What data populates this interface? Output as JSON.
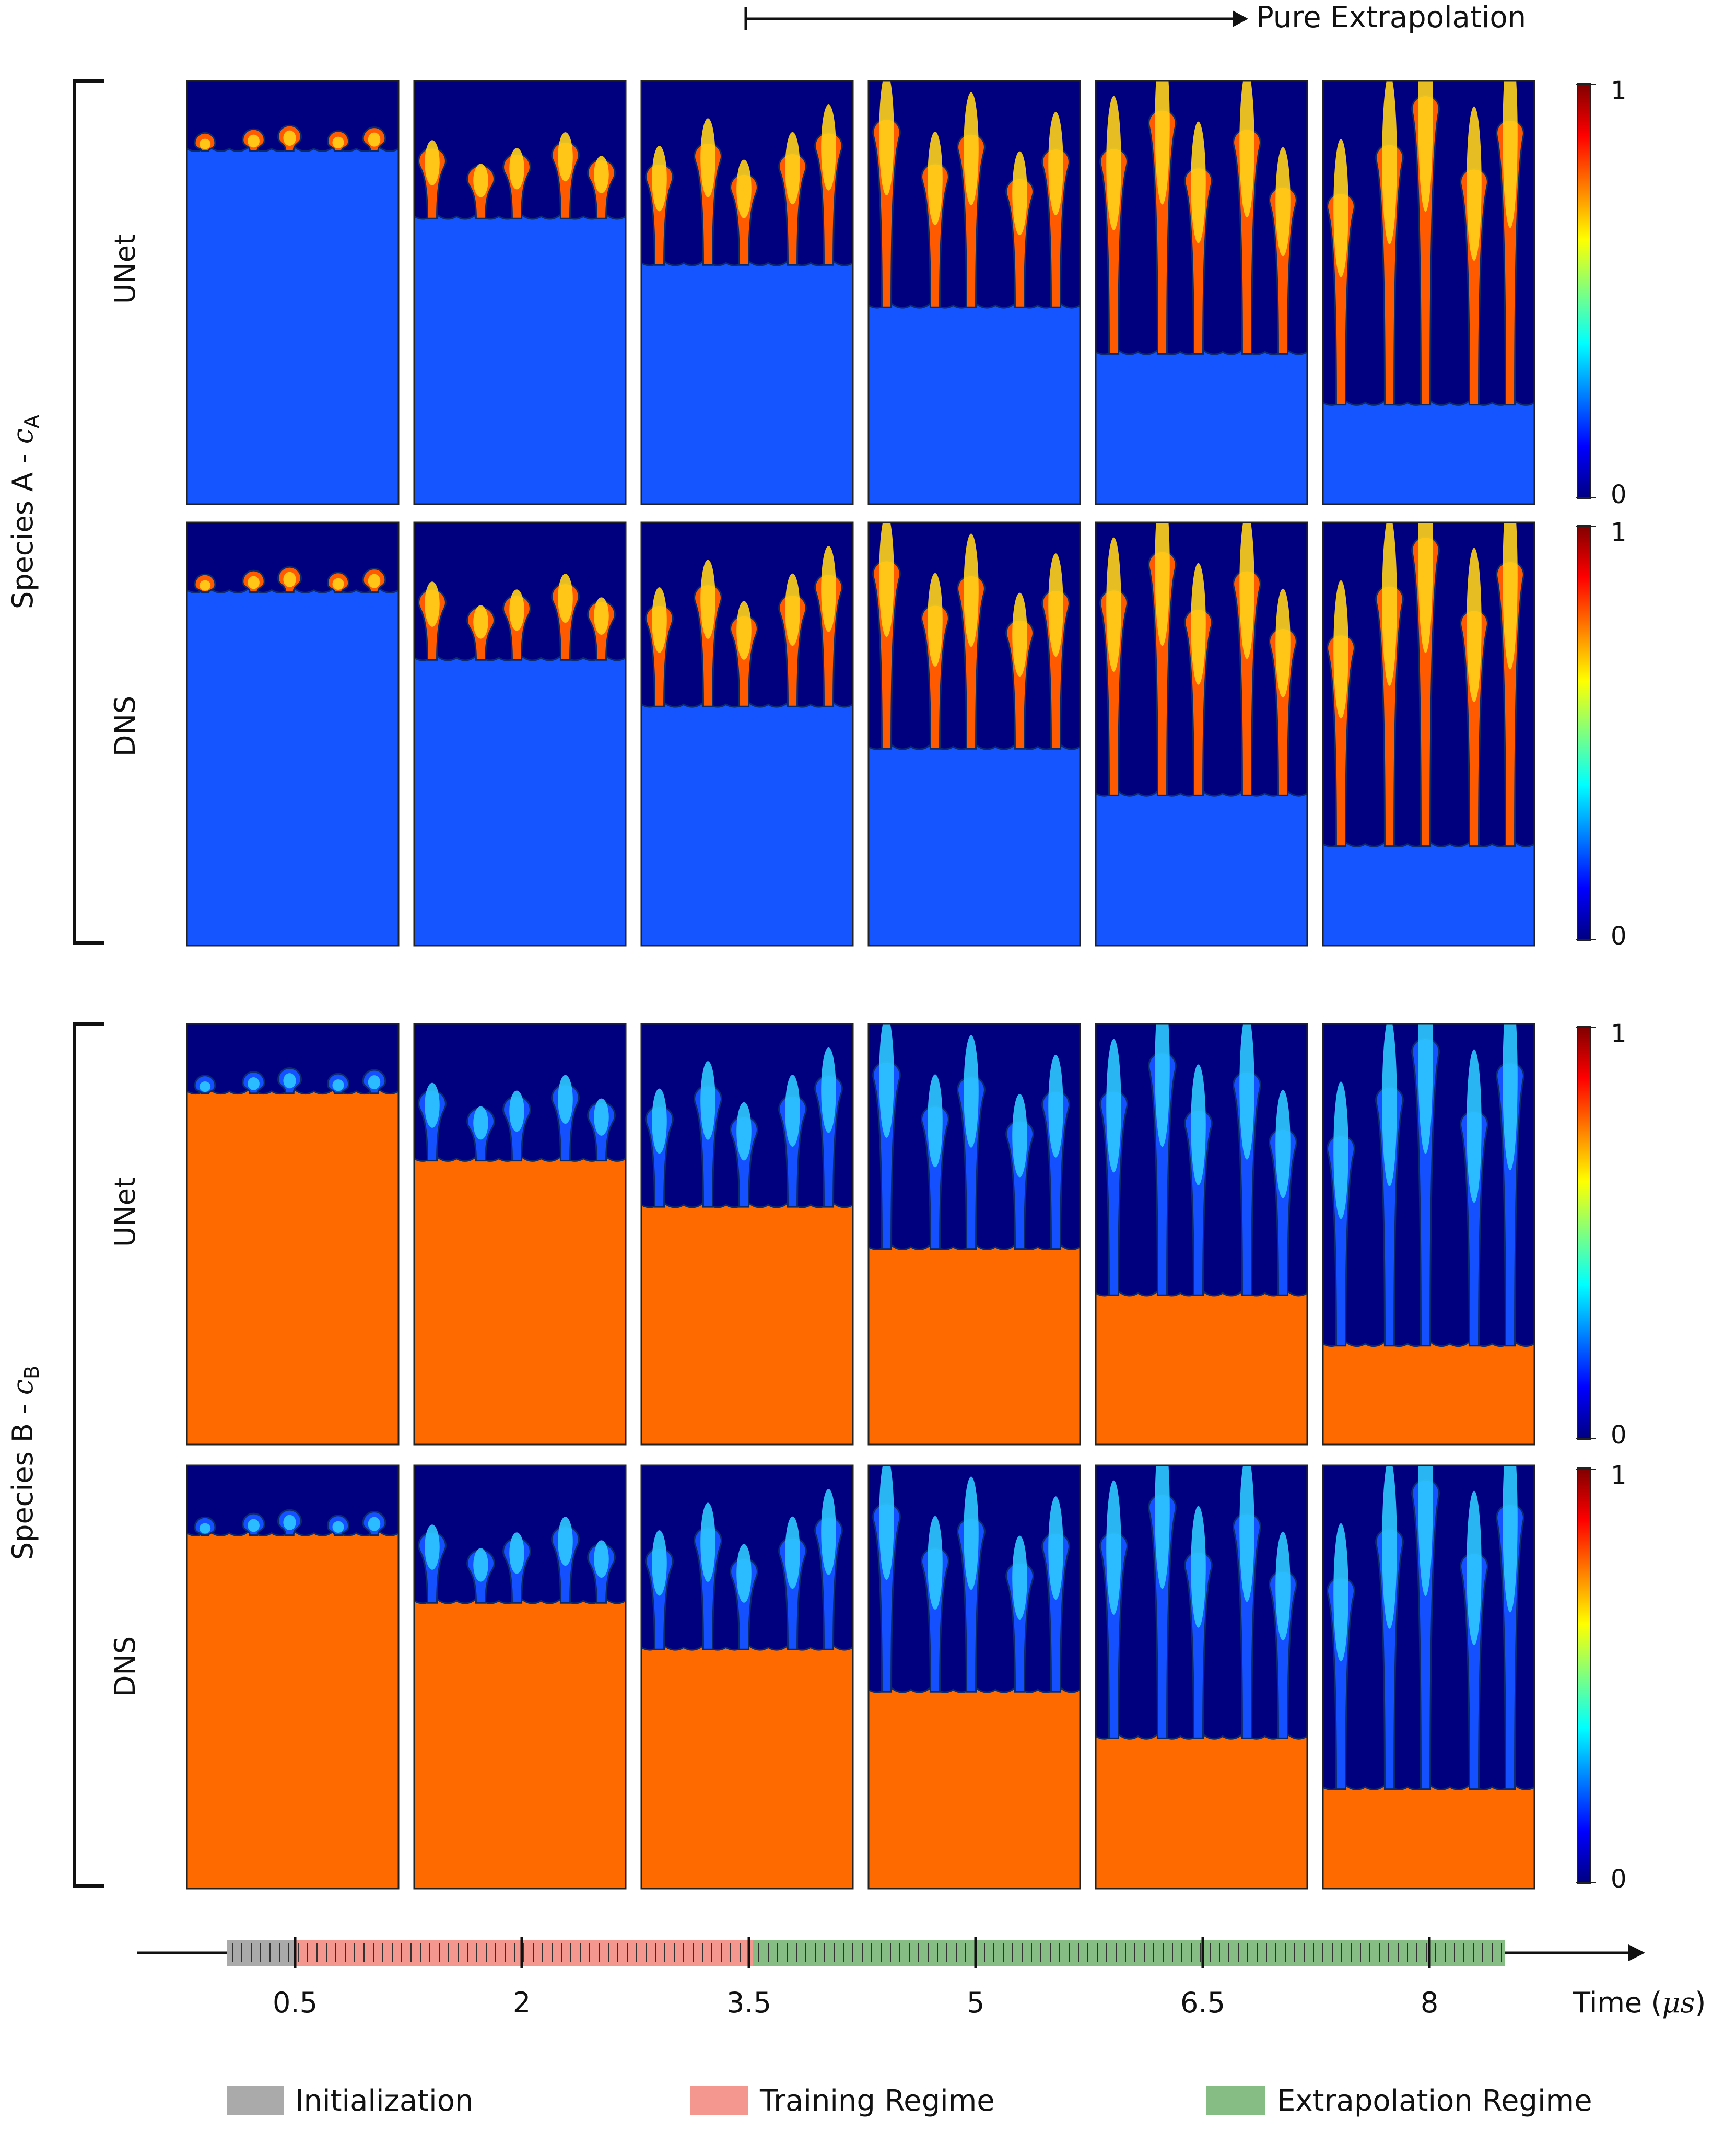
{
  "header": {
    "extrapolation_label": "Pure Extrapolation"
  },
  "species": [
    {
      "prefix": "Species A - ",
      "symbol": "c",
      "subscript": "A",
      "rows": [
        {
          "label": "UNet",
          "colorbar": {
            "max": "1",
            "min": "0"
          }
        },
        {
          "label": "DNS",
          "colorbar": {
            "max": "1",
            "min": "0"
          }
        }
      ],
      "colors": {
        "top": "#00007f",
        "bottom": "#1455ff",
        "finger_core": "#ffd21a",
        "finger_edge": "#ff5a00"
      }
    },
    {
      "prefix": "Species B - ",
      "symbol": "c",
      "subscript": "B",
      "rows": [
        {
          "label": "UNet",
          "colorbar": {
            "max": "1",
            "min": "0"
          }
        },
        {
          "label": "DNS",
          "colorbar": {
            "max": "1",
            "min": "0"
          }
        }
      ],
      "colors": {
        "top": "#00007f",
        "bottom": "#ff6a00",
        "finger_core": "#2ec8ff",
        "finger_edge": "#1450ff"
      }
    }
  ],
  "snapshots": {
    "count": 6,
    "interface_depth": [
      0.16,
      0.32,
      0.43,
      0.53,
      0.64,
      0.76
    ],
    "finger_length": [
      0.05,
      0.16,
      0.28,
      0.4,
      0.52,
      0.66
    ]
  },
  "timeline": {
    "tick_labels": [
      "0.5",
      "2",
      "3.5",
      "5",
      "6.5",
      "8"
    ],
    "axis_label_prefix": "Time ",
    "axis_label_unit": "μs",
    "segments": [
      {
        "name": "Initialization",
        "color": "#aaaaaa"
      },
      {
        "name": "Training Regime",
        "color": "#f4978e"
      },
      {
        "name": "Extrapolation Regime",
        "color": "#86bd84"
      }
    ]
  },
  "legend": [
    {
      "label": "Initialization",
      "color": "#aaaaaa"
    },
    {
      "label": "Training Regime",
      "color": "#f4978e"
    },
    {
      "label": "Extrapolation Regime",
      "color": "#86bd84"
    }
  ],
  "colorbar_gradient": [
    "#00007f",
    "#0000ff",
    "#007fff",
    "#00ffff",
    "#7fff7f",
    "#ffff00",
    "#ff7f00",
    "#ff0000",
    "#7f0000"
  ]
}
